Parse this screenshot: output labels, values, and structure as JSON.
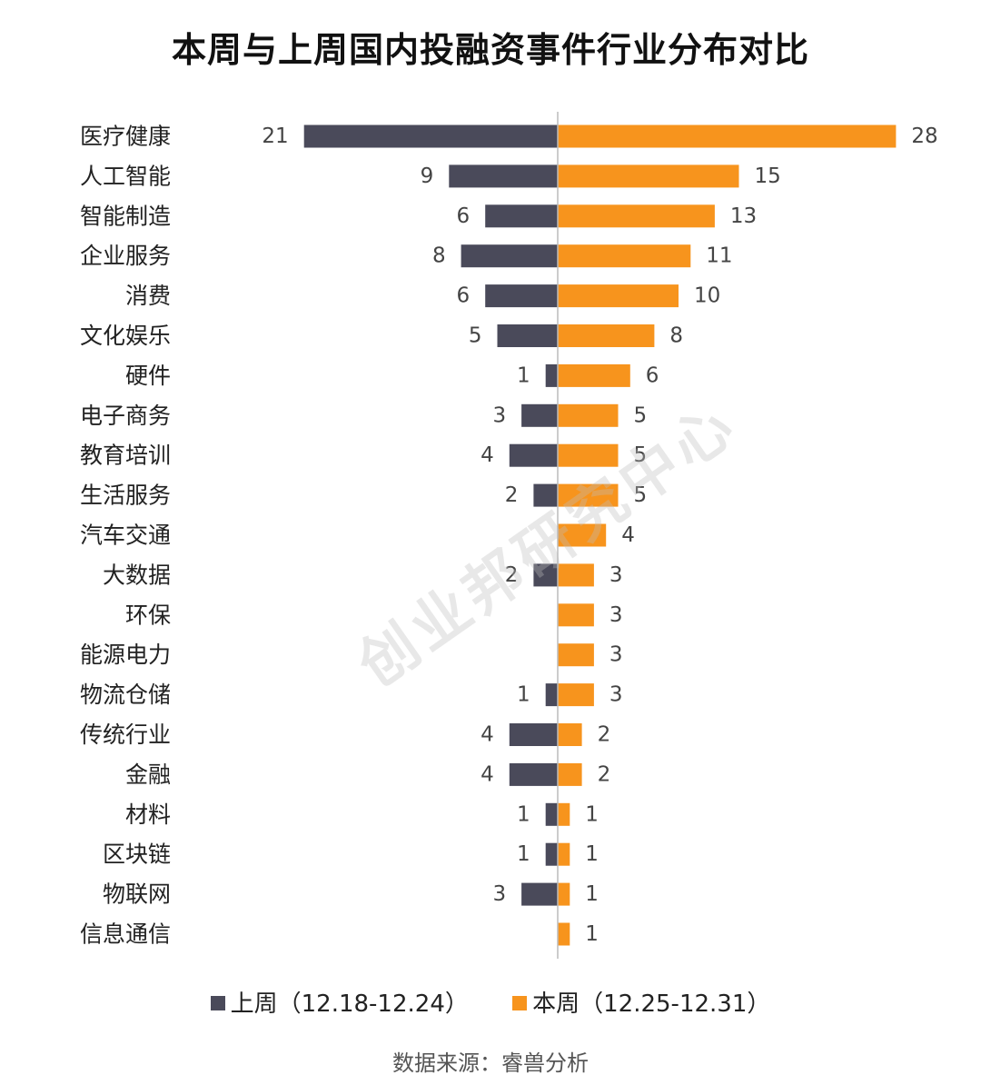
{
  "chart_data": {
    "type": "bar",
    "orientation": "diverging-horizontal",
    "title": "本周与上周国内投融资事件行业分布对比",
    "categories": [
      "医疗健康",
      "人工智能",
      "智能制造",
      "企业服务",
      "消费",
      "文化娱乐",
      "硬件",
      "电子商务",
      "教育培训",
      "生活服务",
      "汽车交通",
      "大数据",
      "环保",
      "能源电力",
      "物流仓储",
      "传统行业",
      "金融",
      "材料",
      "区块链",
      "物联网",
      "信息通信"
    ],
    "series": [
      {
        "name": "上周（12.18-12.24）",
        "color": "#4a4a5a",
        "values": [
          21,
          9,
          6,
          8,
          6,
          5,
          1,
          3,
          4,
          2,
          0,
          2,
          0,
          0,
          1,
          4,
          4,
          1,
          1,
          3,
          0
        ],
        "labels": [
          "21",
          "9",
          "6",
          "8",
          "6",
          "5",
          "1",
          "3",
          "4",
          "2",
          "",
          "2",
          "",
          "",
          "1",
          "4",
          "4",
          "1",
          "1",
          "3",
          ""
        ]
      },
      {
        "name": "本周（12.25-12.31）",
        "color": "#f7941d",
        "values": [
          28,
          15,
          13,
          11,
          10,
          8,
          6,
          5,
          5,
          5,
          4,
          3,
          3,
          3,
          3,
          2,
          2,
          1,
          1,
          1,
          1
        ],
        "labels": [
          "28",
          "15",
          "13",
          "11",
          "10",
          "8",
          "6",
          "5",
          "5",
          "5",
          "4",
          "3",
          "3",
          "3",
          "3",
          "2",
          "2",
          "1",
          "1",
          "1",
          "1"
        ]
      }
    ]
  },
  "legend": {
    "last_week": "上周（12.18-12.24）",
    "this_week": "本周（12.25-12.31）",
    "last_week_color": "#4a4a5a",
    "this_week_color": "#f7941d"
  },
  "watermark": "创业邦研究中心",
  "source": "数据来源：睿兽分析"
}
